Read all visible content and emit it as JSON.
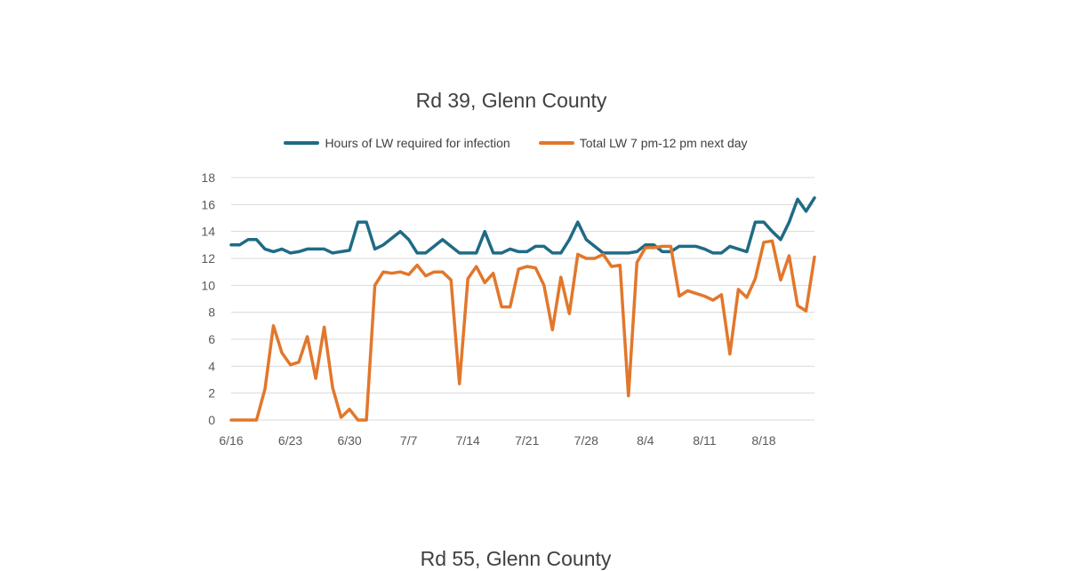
{
  "chart_data": {
    "type": "line",
    "title": "Rd 39, Glenn County",
    "xlabel": "",
    "ylabel": "",
    "ylim": [
      0,
      18
    ],
    "yticks": [
      0,
      2,
      4,
      6,
      8,
      10,
      12,
      14,
      16,
      18
    ],
    "xlim": [
      "6/16",
      "8/24"
    ],
    "xtick_labels": [
      "6/16",
      "6/23",
      "6/30",
      "7/7",
      "7/14",
      "7/21",
      "7/28",
      "8/4",
      "8/11",
      "8/18"
    ],
    "grid": true,
    "legend_position": "top",
    "x": [
      "6/16",
      "6/17",
      "6/18",
      "6/19",
      "6/20",
      "6/21",
      "6/22",
      "6/23",
      "6/24",
      "6/25",
      "6/26",
      "6/27",
      "6/28",
      "6/29",
      "6/30",
      "7/1",
      "7/2",
      "7/3",
      "7/4",
      "7/5",
      "7/6",
      "7/7",
      "7/8",
      "7/9",
      "7/10",
      "7/11",
      "7/12",
      "7/13",
      "7/14",
      "7/15",
      "7/16",
      "7/17",
      "7/18",
      "7/19",
      "7/20",
      "7/21",
      "7/22",
      "7/23",
      "7/24",
      "7/25",
      "7/26",
      "7/27",
      "7/28",
      "7/29",
      "7/30",
      "7/31",
      "8/1",
      "8/2",
      "8/3",
      "8/4",
      "8/5",
      "8/6",
      "8/7",
      "8/8",
      "8/9",
      "8/10",
      "8/11",
      "8/12",
      "8/13",
      "8/14",
      "8/15",
      "8/16",
      "8/17",
      "8/18",
      "8/19",
      "8/20",
      "8/21",
      "8/22",
      "8/23",
      "8/24"
    ],
    "series": [
      {
        "name": "Hours of LW required for infection",
        "color": "#1f6b85",
        "values": [
          13.0,
          13.0,
          13.4,
          13.4,
          12.7,
          12.5,
          12.7,
          12.4,
          12.5,
          12.7,
          12.7,
          12.7,
          12.4,
          12.5,
          12.6,
          14.7,
          14.7,
          12.7,
          13.0,
          13.5,
          14.0,
          13.4,
          12.4,
          12.4,
          12.9,
          13.4,
          12.9,
          12.4,
          12.4,
          12.4,
          14.0,
          12.4,
          12.4,
          12.7,
          12.5,
          12.5,
          12.9,
          12.9,
          12.4,
          12.4,
          13.4,
          14.7,
          13.4,
          12.9,
          12.4,
          12.4,
          12.4,
          12.4,
          12.5,
          13.0,
          13.0,
          12.5,
          12.5,
          12.9,
          12.9,
          12.9,
          12.7,
          12.4,
          12.4,
          12.9,
          12.7,
          12.5,
          14.7,
          14.7,
          14.0,
          13.4,
          14.7,
          16.4,
          15.5,
          16.5
        ]
      },
      {
        "name": "Total LW 7 pm-12 pm next day",
        "color": "#e2772c",
        "values": [
          0,
          0,
          0,
          0,
          2.3,
          7.0,
          5.0,
          4.1,
          4.3,
          6.2,
          3.1,
          6.9,
          2.4,
          0.2,
          0.8,
          0,
          0,
          10.0,
          11.0,
          10.9,
          11.0,
          10.8,
          11.5,
          10.7,
          11.0,
          11.0,
          10.4,
          2.7,
          10.5,
          11.4,
          10.2,
          10.9,
          8.4,
          8.4,
          11.2,
          11.4,
          11.3,
          10.0,
          6.7,
          10.6,
          7.9,
          12.3,
          12.0,
          12.0,
          12.3,
          11.4,
          11.5,
          1.8,
          11.7,
          12.8,
          12.8,
          12.9,
          12.9,
          9.2,
          9.6,
          9.4,
          9.2,
          8.9,
          9.3,
          4.9,
          9.7,
          9.1,
          10.5,
          13.2,
          13.3,
          10.4,
          12.2,
          8.5,
          8.1,
          12.1
        ]
      }
    ]
  },
  "next_chart": {
    "title": "Rd 55, Glenn County"
  }
}
